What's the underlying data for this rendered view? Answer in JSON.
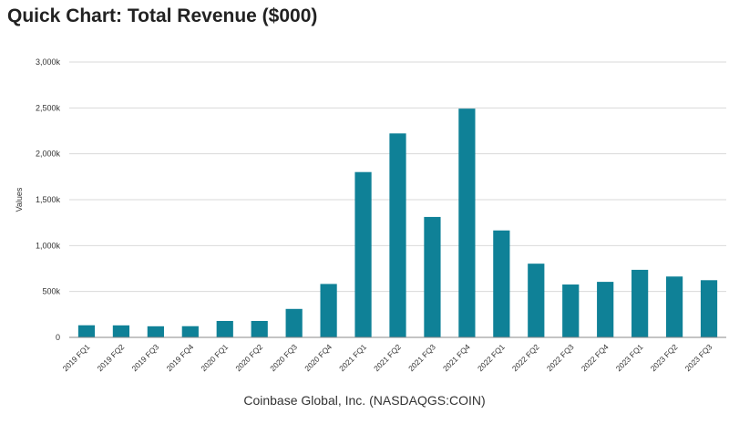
{
  "chart_data": {
    "type": "bar",
    "title": "Quick Chart: Total Revenue ($000)",
    "ylabel": "Values",
    "xlabel": "Coinbase Global, Inc. (NASDAQGS:COIN)",
    "categories": [
      "2019 FQ1",
      "2019 FQ2",
      "2019 FQ3",
      "2019 FQ4",
      "2020 FQ1",
      "2020 FQ2",
      "2020 FQ3",
      "2020 FQ4",
      "2021 FQ1",
      "2021 FQ2",
      "2021 FQ3",
      "2021 FQ4",
      "2022 FQ1",
      "2022 FQ2",
      "2022 FQ3",
      "2022 FQ4",
      "2023 FQ1",
      "2023 FQ2",
      "2023 FQ3"
    ],
    "values": [
      132,
      131,
      121,
      122,
      179,
      179,
      310,
      582,
      1801,
      2222,
      1312,
      2492,
      1165,
      803,
      576,
      605,
      736,
      663,
      623
    ],
    "ylim": [
      0,
      3000
    ],
    "yticks": [
      0,
      500,
      1000,
      1500,
      2000,
      2500,
      3000
    ],
    "ytick_labels": [
      "0",
      "500k",
      "1,000k",
      "1,500k",
      "2,000k",
      "2,500k",
      "3,000k"
    ],
    "grid": true,
    "colors": {
      "bar": "#0f8197",
      "grid": "#d9d9d9",
      "axis": "#888888",
      "text": "#333333"
    }
  }
}
